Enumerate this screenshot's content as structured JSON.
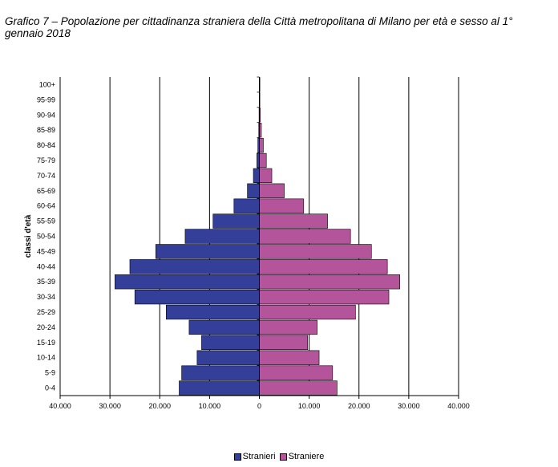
{
  "title": "Grafico 7 – Popolazione per cittadinanza straniera della Città metropolitana di Milano per età e sesso al 1° gennaio 2018",
  "colors": {
    "male": "#333f99",
    "female": "#b4559b",
    "grid": "#000000"
  },
  "chart_data": {
    "type": "bar",
    "orientation": "horizontal",
    "subtype": "population-pyramid",
    "title": "Grafico 7 – Popolazione per cittadinanza straniera della Città metropolitana di Milano per età e sesso al 1° gennaio 2018",
    "ylabel": "classi d'età",
    "xlabel": "",
    "xlim": [
      -40000,
      40000
    ],
    "x_ticks": [
      -40000,
      -30000,
      -20000,
      -10000,
      0,
      10000,
      20000,
      30000,
      40000
    ],
    "x_tick_labels": [
      "40.000",
      "30.000",
      "20.000",
      "10.000",
      "0",
      "10.000",
      "20.000",
      "30.000",
      "40.000"
    ],
    "grid": "vertical",
    "legend_position": "bottom",
    "categories": [
      "0-4",
      "5-9",
      "10-14",
      "15-19",
      "20-24",
      "25-29",
      "30-34",
      "35-39",
      "40-44",
      "45-49",
      "50-54",
      "55-59",
      "60-64",
      "65-69",
      "70-74",
      "75-79",
      "80-84",
      "85-89",
      "90-94",
      "95-99",
      "100+"
    ],
    "series": [
      {
        "name": "Stranieri",
        "side": "left",
        "values": [
          16100,
          15600,
          12500,
          11600,
          14100,
          18700,
          25000,
          29000,
          26000,
          20800,
          14900,
          9300,
          5100,
          2400,
          1200,
          500,
          300,
          120,
          60,
          20,
          5
        ]
      },
      {
        "name": "Straniere",
        "side": "right",
        "values": [
          15600,
          14700,
          12000,
          9700,
          11600,
          19300,
          26000,
          28200,
          25700,
          22500,
          18300,
          13700,
          8900,
          5000,
          2500,
          1400,
          800,
          400,
          200,
          70,
          20
        ]
      }
    ]
  }
}
